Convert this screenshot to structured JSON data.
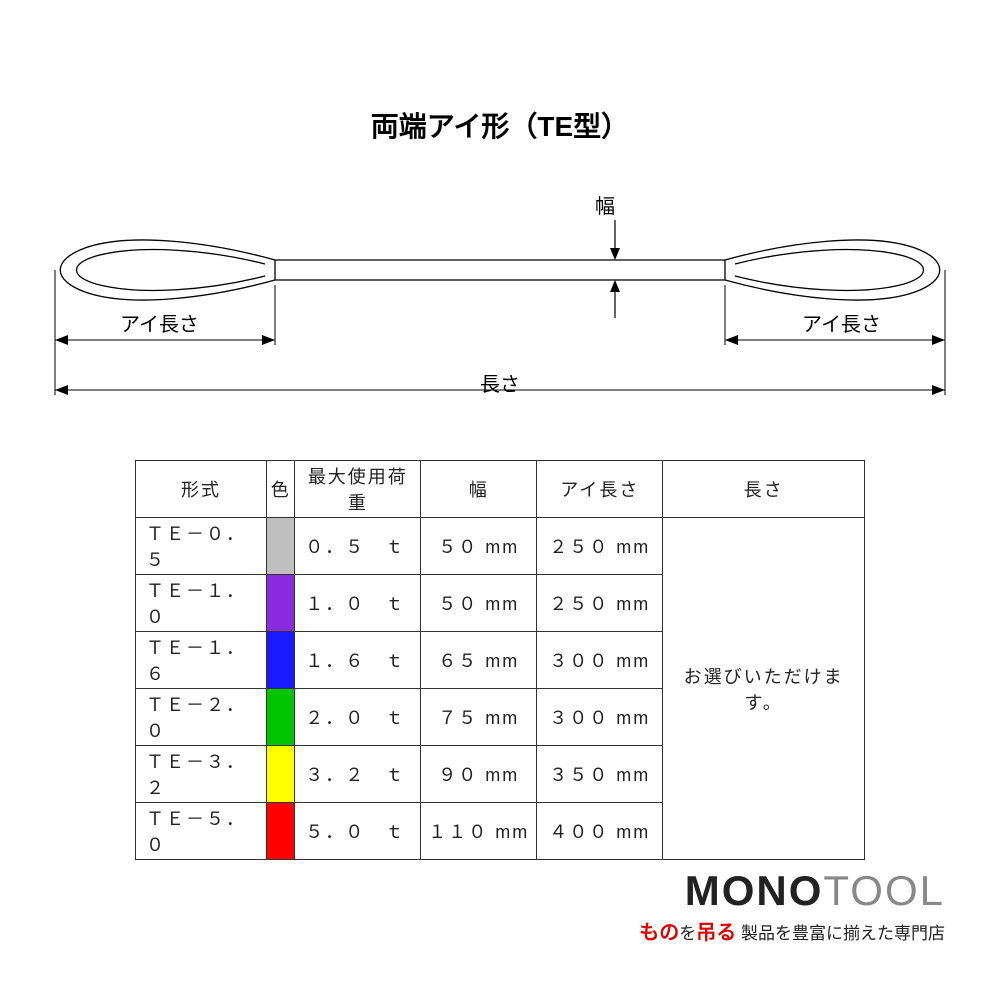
{
  "title": "両端アイ形（TE型）",
  "diagram": {
    "width_label": "幅",
    "eye_length_label": "アイ長さ",
    "length_label": "長さ",
    "stroke": "#333333",
    "body_fill": "#ffffff",
    "line_weight": 1.3
  },
  "table": {
    "headers": {
      "model": "形式",
      "color": "色",
      "max_load": "最大使用荷重",
      "width": "幅",
      "eye_length": "アイ長さ",
      "length": "長さ"
    },
    "length_note": "お選びいただけます。",
    "rows": [
      {
        "model": "ＴＥ－０．５",
        "color": "#bfbfbf",
        "load": "０．５　ｔ",
        "width": "５０ mm",
        "eye": "２５０ mm"
      },
      {
        "model": "ＴＥ－１．０",
        "color": "#8a2be2",
        "load": "１．０　ｔ",
        "width": "５０ mm",
        "eye": "２５０ mm"
      },
      {
        "model": "ＴＥ－１．６",
        "color": "#1a1aff",
        "load": "１．６　ｔ",
        "width": "６５ mm",
        "eye": "３００ mm"
      },
      {
        "model": "ＴＥ－２．０",
        "color": "#00c400",
        "load": "２．０　ｔ",
        "width": "７５ mm",
        "eye": "３００ mm"
      },
      {
        "model": "ＴＥ－３．２",
        "color": "#ffff00",
        "load": "３．２　ｔ",
        "width": "９０ mm",
        "eye": "３５０ mm"
      },
      {
        "model": "ＴＥ－５．０",
        "color": "#ff0000",
        "load": "５．０　ｔ",
        "width": "１１０ mm",
        "eye": "４００ mm"
      }
    ]
  },
  "logo": {
    "mono": "MONO",
    "tool": "TOOL",
    "tagline_accent_prefix": "もの",
    "tagline_accent_mid": "を",
    "tagline_accent_suffix": "吊る",
    "tagline_rest": " 製品を豊富に揃えた専門店"
  }
}
